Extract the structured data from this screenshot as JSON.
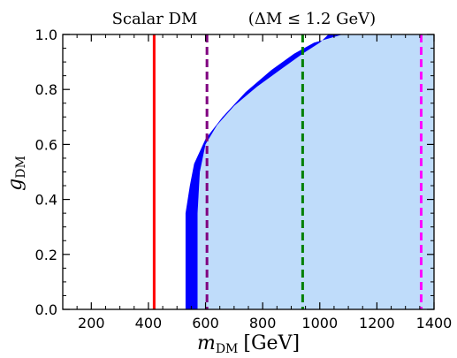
{
  "chart_data": {
    "type": "area",
    "title": "Scalar DM",
    "subtitle": "(ΔM ≤ 1.2 GeV)",
    "xlabel": {
      "symbol": "m",
      "sub": "DM",
      "unit": "[GeV]"
    },
    "ylabel": {
      "symbol": "g",
      "sub": "DM"
    },
    "xlim": [
      100,
      1400
    ],
    "ylim": [
      0.0,
      1.0
    ],
    "xticks": [
      200,
      400,
      600,
      800,
      1000,
      1200,
      1400
    ],
    "yticks": [
      0.0,
      0.2,
      0.4,
      0.6,
      0.8,
      1.0
    ],
    "xticks_minor": [
      150,
      250,
      300,
      350,
      450,
      500,
      550,
      650,
      700,
      750,
      850,
      900,
      950,
      1050,
      1100,
      1150,
      1250,
      1300,
      1350
    ],
    "yticks_minor": [
      0.05,
      0.1,
      0.15,
      0.25,
      0.3,
      0.35,
      0.45,
      0.5,
      0.55,
      0.65,
      0.7,
      0.75,
      0.85,
      0.9,
      0.95
    ],
    "grid": false,
    "shaded_region": {
      "color": "#bfdcfa",
      "x": [
        572,
        572,
        580,
        600,
        640,
        700,
        780,
        860,
        940,
        1000,
        1030,
        1400,
        1400
      ],
      "y": [
        0.0,
        0.35,
        0.5,
        0.6,
        0.67,
        0.74,
        0.81,
        0.87,
        0.93,
        0.97,
        1.0,
        1.0,
        0.0
      ]
    },
    "band": {
      "color": "#0000ff",
      "upper": {
        "x": [
          572,
          572,
          580,
          600,
          640,
          700,
          780,
          860,
          940,
          1000,
          1030
        ],
        "y": [
          0.0,
          0.35,
          0.5,
          0.6,
          0.67,
          0.74,
          0.81,
          0.87,
          0.93,
          0.97,
          1.0
        ]
      },
      "lower": {
        "x": [
          530,
          530,
          545,
          560,
          600,
          660,
          740,
          830,
          910,
          980,
          1080
        ],
        "y": [
          0.0,
          0.35,
          0.45,
          0.53,
          0.62,
          0.7,
          0.79,
          0.87,
          0.93,
          0.97,
          1.0
        ]
      }
    },
    "vlines": [
      {
        "x": 420,
        "color": "#ff0000",
        "style": "solid"
      },
      {
        "x": 605,
        "color": "#800080",
        "style": "dashed"
      },
      {
        "x": 940,
        "color": "#008000",
        "style": "dashed"
      },
      {
        "x": 1355,
        "color": "#ff00ff",
        "style": "dashed"
      }
    ]
  }
}
